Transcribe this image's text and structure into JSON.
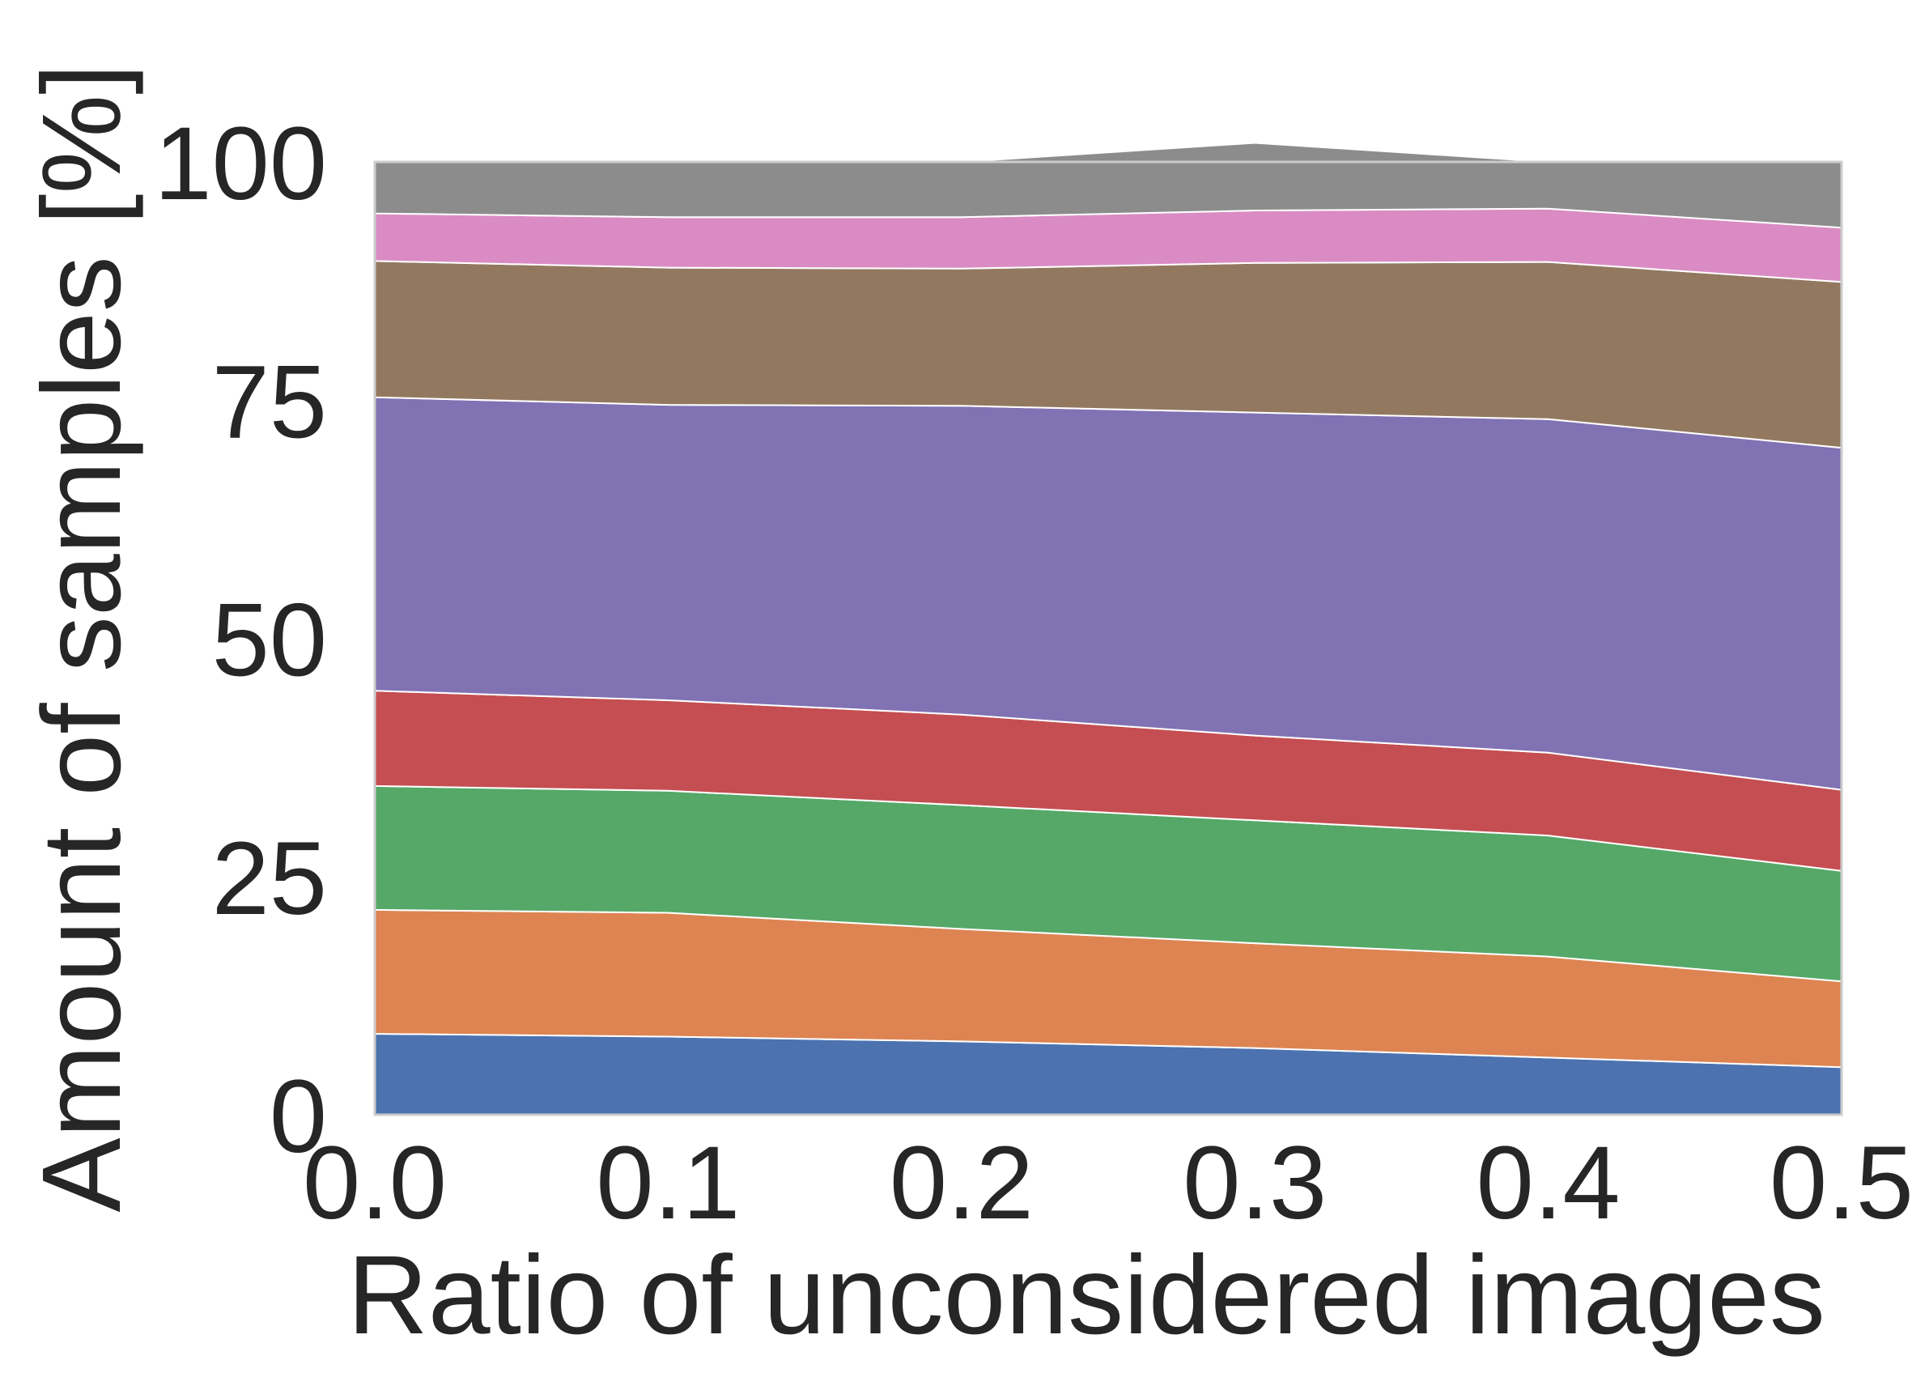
{
  "chart_data": {
    "type": "area",
    "stacked": true,
    "title": "",
    "xlabel": "Ratio of unconsidered images",
    "ylabel": "Amount of samples [%]",
    "xlim": [
      0.0,
      0.5
    ],
    "ylim": [
      0,
      100
    ],
    "x": [
      0.0,
      0.1,
      0.2,
      0.3,
      0.4,
      0.5
    ],
    "x_tick_labels": [
      "0.0",
      "0.1",
      "0.2",
      "0.3",
      "0.4",
      "0.5"
    ],
    "y_ticks": [
      0,
      25,
      50,
      75,
      100
    ],
    "y_tick_labels": [
      "0",
      "25",
      "50",
      "75",
      "100"
    ],
    "grid": false,
    "legend": false,
    "series": [
      {
        "values": [
          8.5,
          8.2,
          7.7,
          7.0,
          6.0,
          5.0
        ],
        "color": "#4c72b0"
      },
      {
        "values": [
          13.0,
          13.0,
          11.8,
          11.0,
          10.6,
          9.0
        ],
        "color": "#dd8452"
      },
      {
        "values": [
          13.0,
          12.8,
          13.0,
          12.9,
          12.7,
          11.6
        ],
        "color": "#55a868"
      },
      {
        "values": [
          10.0,
          9.5,
          9.5,
          8.9,
          8.7,
          8.5
        ],
        "color": "#c44e52"
      },
      {
        "values": [
          30.8,
          31.0,
          32.4,
          33.9,
          35.0,
          35.9
        ],
        "color": "#8172b3"
      },
      {
        "values": [
          14.3,
          14.4,
          14.4,
          15.7,
          16.5,
          17.4
        ],
        "color": "#937860"
      },
      {
        "values": [
          5.0,
          5.3,
          5.4,
          5.5,
          5.6,
          5.7
        ],
        "color": "#da8bc3"
      },
      {
        "values": [
          5.4,
          5.8,
          5.8,
          7.1,
          4.9,
          6.9
        ],
        "color": "#8c8c8c"
      }
    ]
  }
}
